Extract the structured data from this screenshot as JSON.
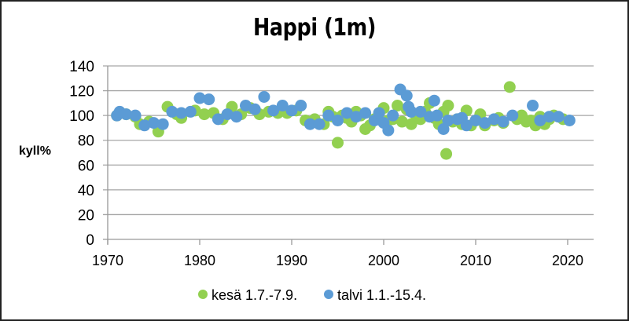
{
  "chart_data": {
    "type": "scatter",
    "title": "Happi (1m)",
    "xlabel": "",
    "ylabel": "kyll%",
    "xlim": [
      1970,
      2022.5
    ],
    "ylim": [
      0,
      140
    ],
    "xticks": [
      1970,
      1980,
      1990,
      2000,
      2010,
      2020
    ],
    "yticks": [
      0,
      20,
      40,
      60,
      80,
      100,
      120,
      140
    ],
    "grid": "horizontal",
    "legend_position": "bottom",
    "series": [
      {
        "name": "kesä 1.7.-7.9.",
        "color": "#92D050",
        "points": [
          [
            1971,
            100
          ],
          [
            1972,
            101
          ],
          [
            1973,
            99
          ],
          [
            1973.5,
            93
          ],
          [
            1974.5,
            95
          ],
          [
            1975.5,
            87
          ],
          [
            1976.5,
            107
          ],
          [
            1977.5,
            101
          ],
          [
            1978,
            98
          ],
          [
            1979.5,
            104
          ],
          [
            1980.5,
            101
          ],
          [
            1981.5,
            102
          ],
          [
            1982.5,
            97
          ],
          [
            1983.5,
            107
          ],
          [
            1984.5,
            101
          ],
          [
            1985.5,
            106
          ],
          [
            1986.5,
            101
          ],
          [
            1987.5,
            103
          ],
          [
            1988.5,
            102
          ],
          [
            1989.5,
            102
          ],
          [
            1990.5,
            104
          ],
          [
            1991.5,
            96
          ],
          [
            1992.5,
            97
          ],
          [
            1993.5,
            93
          ],
          [
            1994,
            103
          ],
          [
            1994.5,
            99
          ],
          [
            1995,
            78
          ],
          [
            1995.5,
            100
          ],
          [
            1996,
            98
          ],
          [
            1996.5,
            95
          ],
          [
            1997,
            103
          ],
          [
            1997.5,
            100
          ],
          [
            1998,
            89
          ],
          [
            1998.5,
            92
          ],
          [
            1999,
            97
          ],
          [
            1999.5,
            102
          ],
          [
            2000,
            106
          ],
          [
            2000.5,
            96
          ],
          [
            2001,
            97
          ],
          [
            2001.5,
            108
          ],
          [
            2002,
            95
          ],
          [
            2002.5,
            105
          ],
          [
            2003,
            93
          ],
          [
            2003.5,
            100
          ],
          [
            2004,
            97
          ],
          [
            2004.5,
            103
          ],
          [
            2005,
            110
          ],
          [
            2005.5,
            98
          ],
          [
            2006,
            93
          ],
          [
            2006.5,
            103
          ],
          [
            2006.8,
            69
          ],
          [
            2007,
            108
          ],
          [
            2007.5,
            95
          ],
          [
            2008,
            97
          ],
          [
            2008.5,
            93
          ],
          [
            2009,
            104
          ],
          [
            2009.5,
            92
          ],
          [
            2010,
            96
          ],
          [
            2010.5,
            101
          ],
          [
            2011,
            92
          ],
          [
            2012,
            96
          ],
          [
            2012.5,
            98
          ],
          [
            2013,
            94
          ],
          [
            2013.7,
            123
          ],
          [
            2014.5,
            97
          ],
          [
            2015,
            100
          ],
          [
            2015.5,
            95
          ],
          [
            2016,
            96
          ],
          [
            2016.5,
            92
          ],
          [
            2017,
            99
          ],
          [
            2017.5,
            93
          ],
          [
            2018,
            97
          ],
          [
            2018.5,
            100
          ],
          [
            2019.5,
            97
          ]
        ]
      },
      {
        "name": "talvi 1.1.-15.4.",
        "color": "#5B9BD5",
        "points": [
          [
            1971,
            100
          ],
          [
            1971.3,
            103
          ],
          [
            1972,
            101
          ],
          [
            1973,
            100
          ],
          [
            1974,
            92
          ],
          [
            1975,
            94
          ],
          [
            1976,
            93
          ],
          [
            1977,
            103
          ],
          [
            1978,
            102
          ],
          [
            1979,
            103
          ],
          [
            1980,
            114
          ],
          [
            1981,
            113
          ],
          [
            1982,
            97
          ],
          [
            1983,
            101
          ],
          [
            1984,
            99
          ],
          [
            1985,
            108
          ],
          [
            1986,
            105
          ],
          [
            1987,
            115
          ],
          [
            1988,
            104
          ],
          [
            1989,
            108
          ],
          [
            1990,
            104
          ],
          [
            1991,
            108
          ],
          [
            1992,
            93
          ],
          [
            1993,
            93
          ],
          [
            1994,
            100
          ],
          [
            1995,
            96
          ],
          [
            1996,
            102
          ],
          [
            1997,
            99
          ],
          [
            1998,
            102
          ],
          [
            1999,
            96
          ],
          [
            1999.5,
            102
          ],
          [
            2000,
            94
          ],
          [
            2000.5,
            88
          ],
          [
            2001,
            100
          ],
          [
            2001.8,
            121
          ],
          [
            2002.5,
            116
          ],
          [
            2002.7,
            107
          ],
          [
            2003,
            103
          ],
          [
            2004,
            103
          ],
          [
            2005,
            99
          ],
          [
            2005.5,
            112
          ],
          [
            2005.8,
            100
          ],
          [
            2006.5,
            89
          ],
          [
            2007,
            96
          ],
          [
            2008,
            97
          ],
          [
            2008.5,
            98
          ],
          [
            2009,
            92
          ],
          [
            2010,
            96
          ],
          [
            2011,
            94
          ],
          [
            2012,
            97
          ],
          [
            2013,
            95
          ],
          [
            2014,
            100
          ],
          [
            2016.2,
            108
          ],
          [
            2017,
            96
          ],
          [
            2018,
            99
          ],
          [
            2019,
            99
          ],
          [
            2020.2,
            96
          ]
        ]
      }
    ]
  },
  "legend": {
    "items": [
      {
        "label": "kesä 1.7.-7.9.",
        "color": "#92D050"
      },
      {
        "label": "talvi 1.1.-15.4.",
        "color": "#5B9BD5"
      }
    ]
  }
}
